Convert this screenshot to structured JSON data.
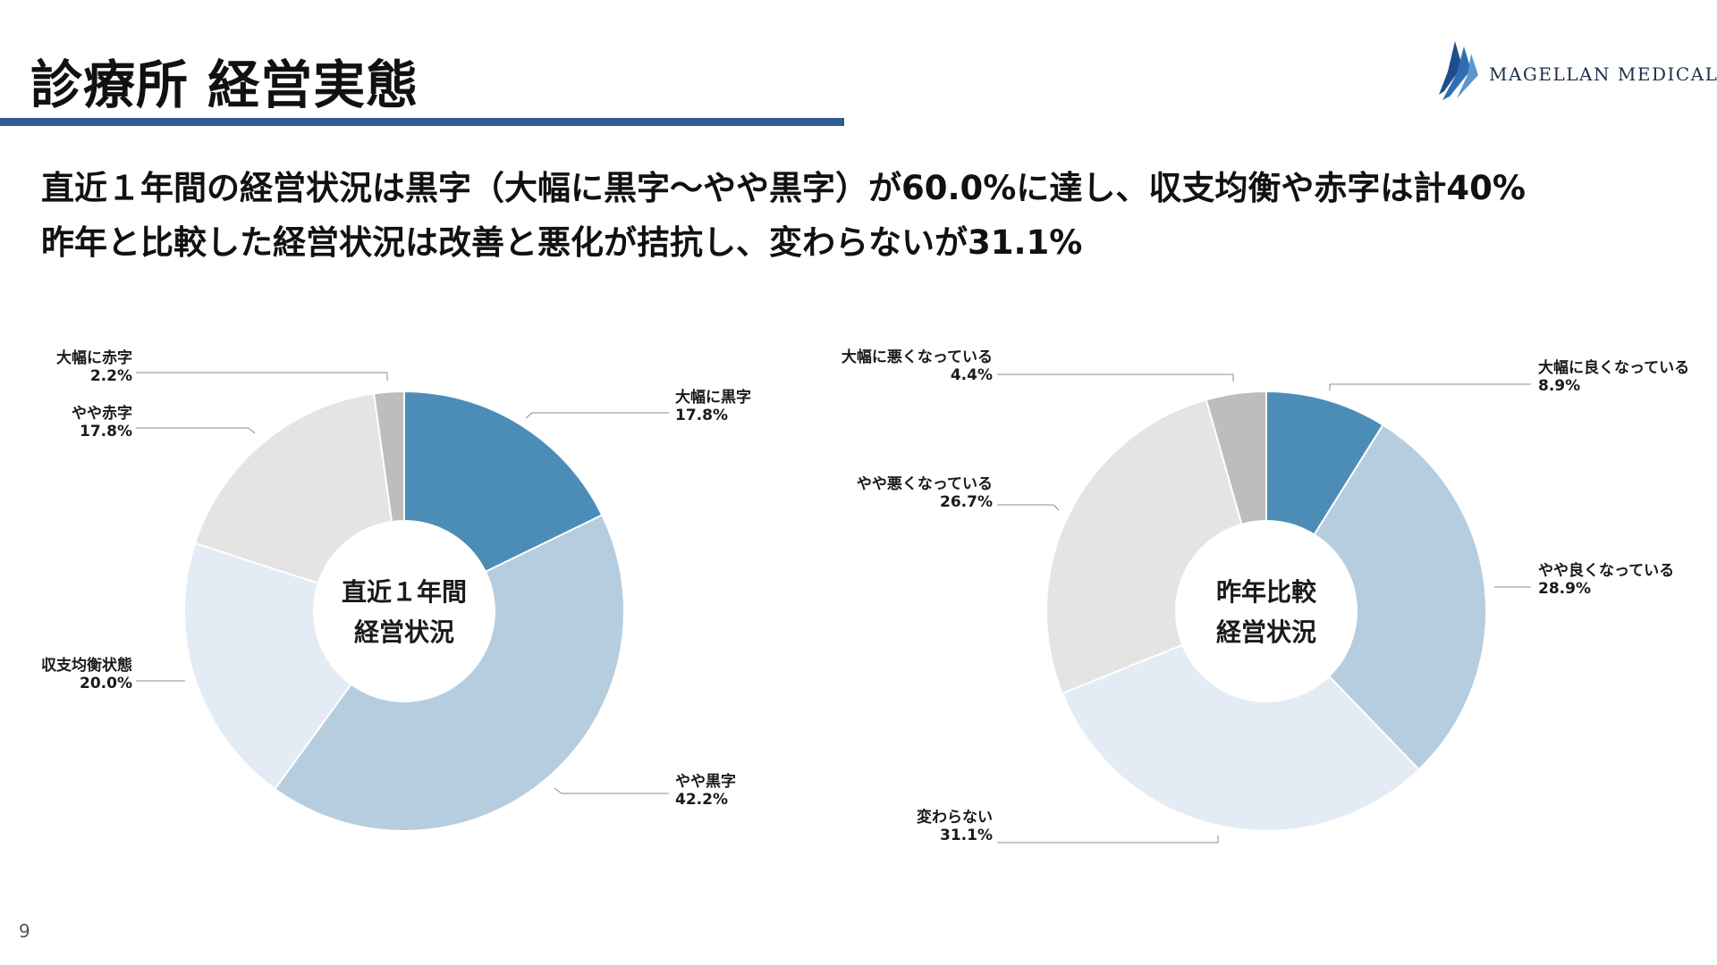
{
  "header": {
    "title": "診療所 経営実態",
    "logo_text": "MAGELLAN MEDICAL",
    "accent_color": "#2d5c92"
  },
  "headline": {
    "line1": "直近１年間の経営状況は黒字（大幅に黒字～やや黒字）が60.0%に達し、収支均衡や赤字は計40%",
    "line2": "昨年と比較した経営状況は改善と悪化が拮抗し、変わらないが31.1%"
  },
  "page_number": "9",
  "chart_data": [
    {
      "type": "pie",
      "donut": true,
      "center_label": [
        "直近１年間",
        "経営状況"
      ],
      "slices": [
        {
          "label": "大幅に黒字",
          "value": 17.8,
          "display": "17.8%",
          "color": "#4b8db6"
        },
        {
          "label": "やや黒字",
          "value": 42.2,
          "display": "42.2%",
          "color": "#b5cddf"
        },
        {
          "label": "収支均衡状態",
          "value": 20.0,
          "display": "20.0%",
          "color": "#e3ecf4"
        },
        {
          "label": "やや赤字",
          "value": 17.8,
          "display": "17.8%",
          "color": "#e4e4e4"
        },
        {
          "label": "大幅に赤字",
          "value": 2.2,
          "display": "2.2%",
          "color": "#bdbdbd"
        }
      ]
    },
    {
      "type": "pie",
      "donut": true,
      "center_label": [
        "昨年比較",
        "経営状況"
      ],
      "slices": [
        {
          "label": "大幅に良くなっている",
          "value": 8.9,
          "display": "8.9%",
          "color": "#4b8db6"
        },
        {
          "label": "やや良くなっている",
          "value": 28.9,
          "display": "28.9%",
          "color": "#b5cddf"
        },
        {
          "label": "変わらない",
          "value": 31.1,
          "display": "31.1%",
          "color": "#e3ecf4"
        },
        {
          "label": "やや悪くなっている",
          "value": 26.7,
          "display": "26.7%",
          "color": "#e4e4e4"
        },
        {
          "label": "大幅に悪くなっている",
          "value": 4.4,
          "display": "4.4%",
          "color": "#bdbdbd"
        }
      ]
    }
  ]
}
